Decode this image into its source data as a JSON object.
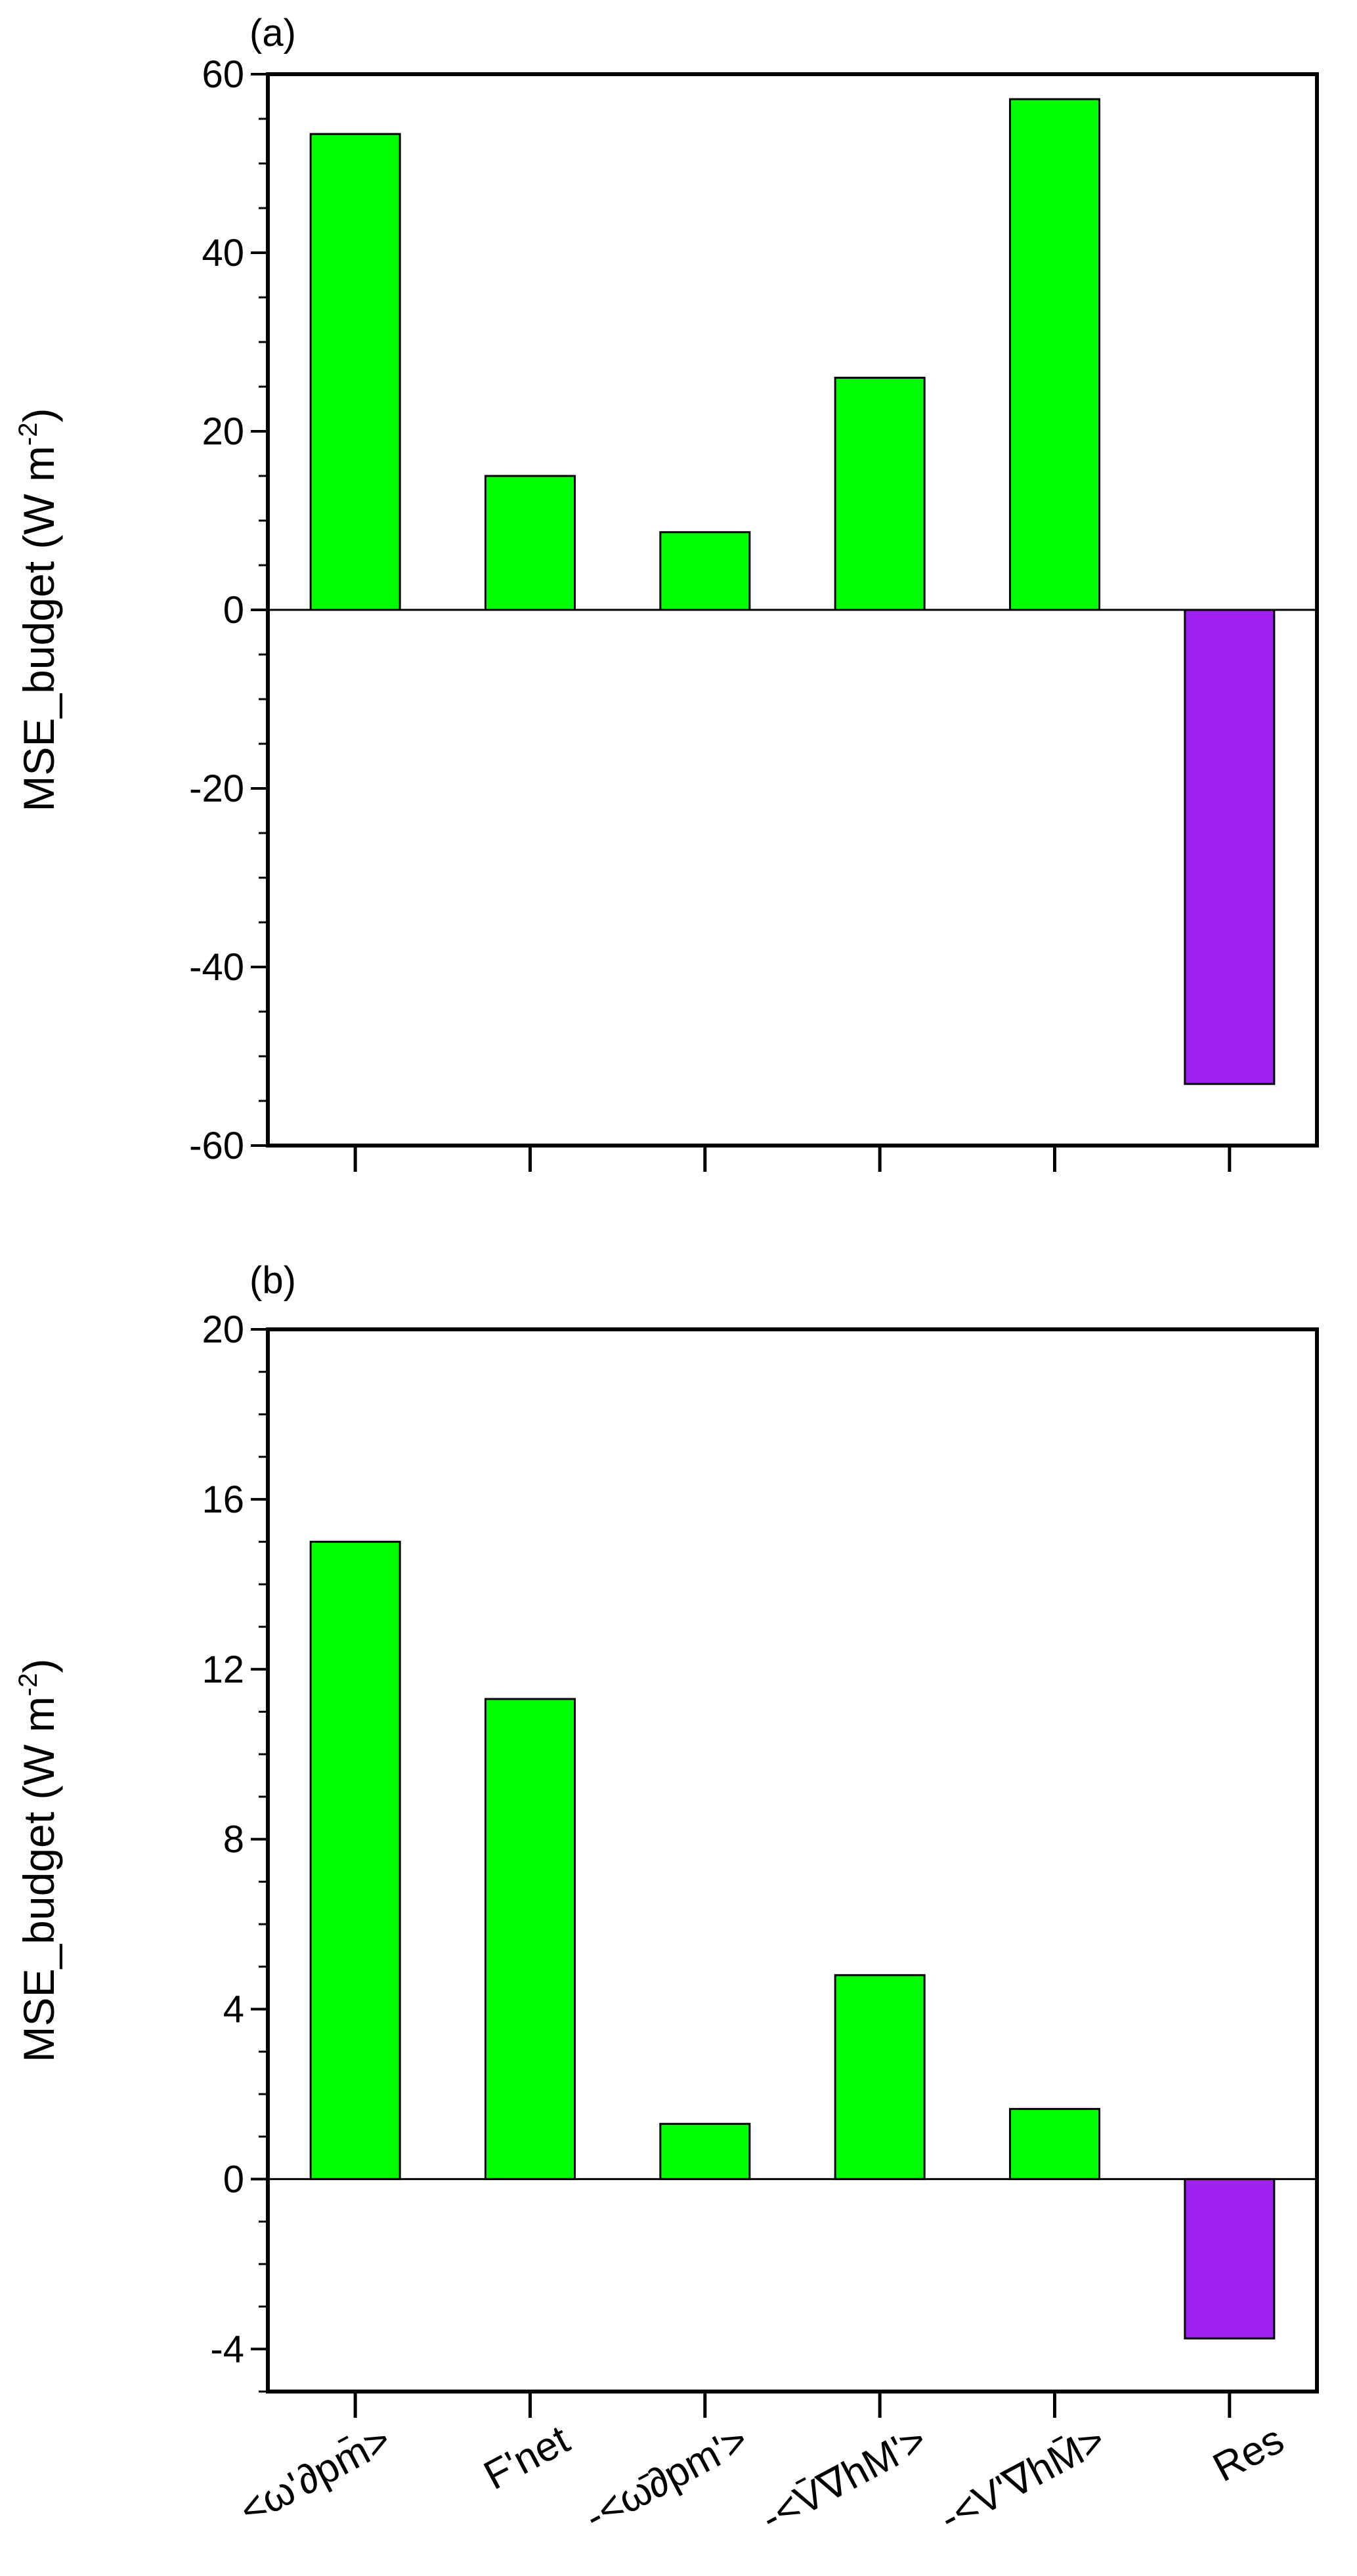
{
  "colors": {
    "positive": "#00ff00",
    "negative": "#a020f0",
    "axis": "#000000"
  },
  "category_labels": [
    "<ω'∂pm̄>",
    "F'net",
    "-<ω̄∂pm'>",
    "-<V̄∇hM'>",
    "-<V'∇hM̄>",
    "Res"
  ],
  "chart_data": [
    {
      "type": "bar",
      "panel_label": "(a)",
      "ylabel": "MSE_budget (W m-2)",
      "ylabel_parts": {
        "main": "MSE_budget (W m",
        "sup": "-2",
        "end": ")"
      },
      "ylim": [
        -60,
        60
      ],
      "yticks": [
        -60,
        -40,
        -20,
        0,
        20,
        40,
        60
      ],
      "ytick_labels": [
        "-60",
        "-40",
        "-20",
        "0",
        "20",
        "40",
        "60"
      ],
      "minor_step": 5,
      "values": [
        53.3,
        15.0,
        8.7,
        26.0,
        57.2,
        -53.1
      ],
      "grid": false,
      "legend": "none"
    },
    {
      "type": "bar",
      "panel_label": "(b)",
      "ylabel": "MSE_budget (W m-2)",
      "ylabel_parts": {
        "main": "MSE_budget (W m",
        "sup": "-2",
        "end": ")"
      },
      "ylim": [
        -5,
        20
      ],
      "yticks": [
        -4,
        0,
        4,
        8,
        12,
        16,
        20
      ],
      "ytick_labels": [
        "-4",
        "0",
        "4",
        "8",
        "12",
        "16",
        "20"
      ],
      "minor_step": 1,
      "values": [
        15.0,
        11.3,
        1.3,
        4.8,
        1.65,
        -3.75
      ],
      "grid": false,
      "legend": "none"
    }
  ]
}
